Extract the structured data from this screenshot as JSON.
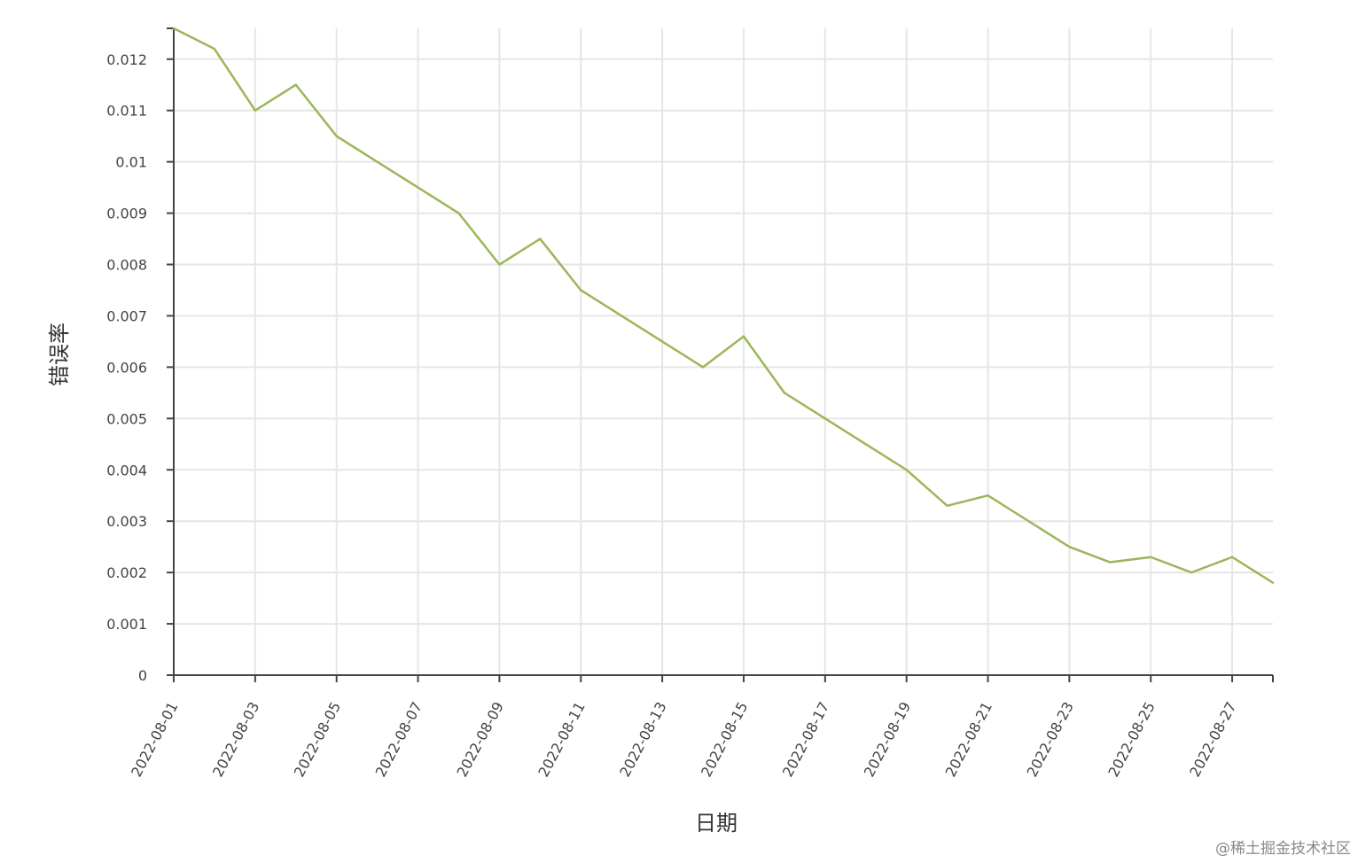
{
  "chart_data": {
    "type": "line",
    "title": "",
    "xlabel": "日期",
    "ylabel": "错误率",
    "x": [
      "2022-08-01",
      "2022-08-02",
      "2022-08-03",
      "2022-08-04",
      "2022-08-05",
      "2022-08-06",
      "2022-08-07",
      "2022-08-08",
      "2022-08-09",
      "2022-08-10",
      "2022-08-11",
      "2022-08-12",
      "2022-08-13",
      "2022-08-14",
      "2022-08-15",
      "2022-08-16",
      "2022-08-17",
      "2022-08-18",
      "2022-08-19",
      "2022-08-20",
      "2022-08-21",
      "2022-08-22",
      "2022-08-23",
      "2022-08-24",
      "2022-08-25",
      "2022-08-26",
      "2022-08-27",
      "2022-08-28"
    ],
    "series": [
      {
        "values": [
          0.0126,
          0.0122,
          0.011,
          0.0115,
          0.0105,
          0.01,
          0.0095,
          0.009,
          0.008,
          0.0085,
          0.0075,
          0.007,
          0.0065,
          0.006,
          0.0066,
          0.0055,
          0.005,
          0.0045,
          0.004,
          0.0033,
          0.0035,
          0.003,
          0.0025,
          0.0022,
          0.0023,
          0.002,
          0.0023,
          0.0018
        ],
        "color": "#9cb65a"
      }
    ],
    "x_tick_labels": [
      "2022-08-01",
      "2022-08-03",
      "2022-08-05",
      "2022-08-07",
      "2022-08-09",
      "2022-08-11",
      "2022-08-13",
      "2022-08-15",
      "2022-08-17",
      "2022-08-19",
      "2022-08-21",
      "2022-08-23",
      "2022-08-25",
      "2022-08-27"
    ],
    "y_ticks": [
      0,
      0.001,
      0.002,
      0.003,
      0.004,
      0.005,
      0.006,
      0.007,
      0.008,
      0.009,
      0.01,
      0.011,
      0.012
    ],
    "y_tick_labels": [
      "0",
      "0.001",
      "0.002",
      "0.003",
      "0.004",
      "0.005",
      "0.006",
      "0.007",
      "0.008",
      "0.009",
      "0.01",
      "0.011",
      "0.012"
    ],
    "ylim": [
      0,
      0.0126
    ],
    "grid": true,
    "legend": "none"
  },
  "watermark": "@稀土掘金技术社区"
}
